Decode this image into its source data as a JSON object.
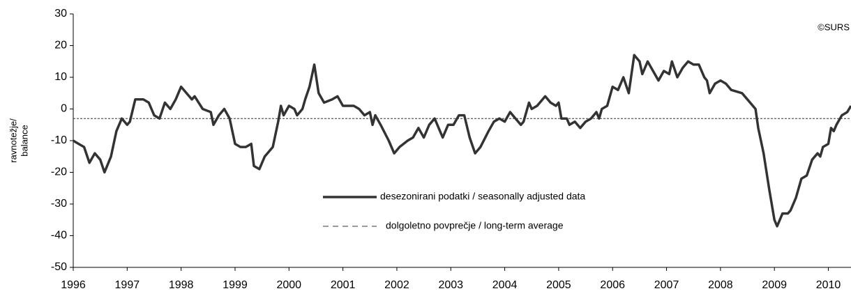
{
  "chart_data": {
    "type": "line",
    "ylabel": [
      "ravnotežje/",
      "balance"
    ],
    "annotation": "©SURS",
    "xlim": [
      1996,
      2010.42
    ],
    "xticks": [
      1996,
      1997,
      1998,
      1999,
      2000,
      2001,
      2002,
      2003,
      2004,
      2005,
      2006,
      2007,
      2008,
      2009,
      2010
    ],
    "ylim": [
      -50,
      30
    ],
    "yticks": [
      -50,
      -40,
      -30,
      -20,
      -10,
      0,
      10,
      20,
      30
    ],
    "grid": false,
    "legend": "center",
    "series": [
      {
        "name": "desezonirani podatki / seasonally adjusted data",
        "color": "#333333",
        "style": "solid",
        "x": [
          1996.0,
          1996.1,
          1996.2,
          1996.3,
          1996.4,
          1996.5,
          1996.58,
          1996.7,
          1996.8,
          1996.9,
          1997.0,
          1997.05,
          1997.15,
          1997.3,
          1997.4,
          1997.5,
          1997.6,
          1997.7,
          1997.8,
          1997.9,
          1998.0,
          1998.1,
          1998.2,
          1998.25,
          1998.4,
          1998.55,
          1998.6,
          1998.7,
          1998.8,
          1998.9,
          1999.0,
          1999.1,
          1999.2,
          1999.3,
          1999.35,
          1999.45,
          1999.55,
          1999.7,
          1999.8,
          1999.85,
          1999.9,
          2000.0,
          2000.1,
          2000.15,
          2000.25,
          2000.3,
          2000.38,
          2000.47,
          2000.55,
          2000.65,
          2000.8,
          2000.9,
          2001.0,
          2001.2,
          2001.3,
          2001.4,
          2001.5,
          2001.55,
          2001.6,
          2001.7,
          2001.85,
          2001.95,
          2002.05,
          2002.2,
          2002.3,
          2002.4,
          2002.5,
          2002.6,
          2002.7,
          2002.8,
          2002.85,
          2002.95,
          2003.05,
          2003.15,
          2003.25,
          2003.35,
          2003.45,
          2003.55,
          2003.7,
          2003.8,
          2003.9,
          2004.0,
          2004.1,
          2004.2,
          2004.3,
          2004.35,
          2004.45,
          2004.5,
          2004.6,
          2004.75,
          2004.85,
          2004.95,
          2005.0,
          2005.05,
          2005.15,
          2005.2,
          2005.3,
          2005.4,
          2005.5,
          2005.6,
          2005.7,
          2005.75,
          2005.8,
          2005.9,
          2006.0,
          2006.1,
          2006.2,
          2006.3,
          2006.4,
          2006.5,
          2006.55,
          2006.65,
          2006.75,
          2006.85,
          2006.95,
          2007.05,
          2007.1,
          2007.2,
          2007.3,
          2007.4,
          2007.5,
          2007.6,
          2007.7,
          2007.75,
          2007.8,
          2007.9,
          2008.0,
          2008.1,
          2008.2,
          2008.4,
          2008.5,
          2008.6,
          2008.65,
          2008.7,
          2008.8,
          2008.9,
          2009.0,
          2009.05,
          2009.15,
          2009.25,
          2009.3,
          2009.4,
          2009.5,
          2009.6,
          2009.7,
          2009.8,
          2009.85,
          2009.9,
          2010.0,
          2010.05,
          2010.1,
          2010.15,
          2010.25,
          2010.35,
          2010.42
        ],
        "values": [
          -10,
          -11,
          -12,
          -17,
          -14,
          -16,
          -20,
          -15,
          -7,
          -3,
          -5,
          -4,
          3,
          3,
          2,
          -2,
          -3,
          2,
          0,
          3,
          7,
          5,
          3,
          4,
          0,
          -1,
          -5,
          -2,
          0,
          -3,
          -11,
          -12,
          -12,
          -11,
          -18,
          -19,
          -15,
          -12,
          -4,
          1,
          -2,
          1,
          0,
          -2,
          0,
          3,
          7,
          14,
          5,
          2,
          3,
          4,
          1,
          1,
          0,
          -2,
          -1,
          -5,
          -2,
          -5,
          -10,
          -14,
          -12,
          -10,
          -9,
          -6,
          -9,
          -5,
          -3,
          -7,
          -9,
          -5,
          -5,
          -2,
          -2,
          -9,
          -14,
          -12,
          -7,
          -4,
          -3,
          -4,
          -1,
          -3,
          -5,
          -4,
          2,
          0,
          1,
          4,
          2,
          1,
          2,
          -3,
          -3,
          -5,
          -4,
          -6,
          -4,
          -3,
          -1,
          -3,
          0,
          1,
          7,
          6,
          10,
          5,
          17,
          15,
          11,
          15,
          12,
          9,
          12,
          11,
          15,
          10,
          13,
          15,
          14,
          14,
          10,
          9,
          5,
          8,
          9,
          8,
          6,
          5,
          3,
          1,
          0,
          -6,
          -14,
          -25,
          -35,
          -37,
          -33,
          -33,
          -32,
          -28,
          -22,
          -21,
          -16,
          -14,
          -15,
          -12,
          -11,
          -6,
          -7,
          -5,
          -2,
          -1,
          1
        ]
      },
      {
        "name": "dolgoletno povprečje / long-term average",
        "color": "#333333",
        "style": "dashed",
        "x": [
          1996,
          2010.42
        ],
        "values": [
          -3,
          -3
        ]
      }
    ]
  }
}
